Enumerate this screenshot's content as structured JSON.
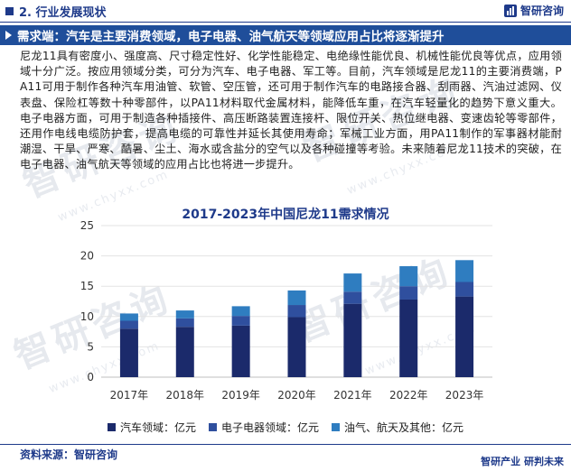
{
  "header": {
    "section_title": "2. 行业发展现状",
    "logo_text": "智研咨询"
  },
  "banner": {
    "text": "需求端：汽车是主要消费领域，电子电器、油气航天等领域应用占比将逐渐提升"
  },
  "paragraph": "尼龙11具有密度小、强度高、尺寸稳定性好、化学性能稳定、电绝缘性能优良、机械性能优良等优点，应用领域十分广泛。按应用领域分类，可分为汽车、电子电器、军工等。目前，汽车领域是尼龙11的主要消费端，PA11可用于制作各种汽车用油管、软管、空压管，还可用于制作汽车的电路接合器、刮雨器、汽油过滤网、仪表盘、保险杠等数十种零部件，以PA11材料取代金属材料，能降低车重，在汽车轻量化的趋势下意义重大。电子电器方面，可用于制造各种插接件、高压断路装置连接杆、限位开关、热位继电器、变速齿轮等零部件，还用作电线电缆防护套，提高电缆的可靠性并延长其使用寿命；军械工业方面，用PA11制作的军事器材能耐潮湿、干旱、严寒、酷暑、尘土、海水或含盐分的空气以及各种碰撞等考验。未来随着尼龙11技术的突破，在电子电器、油气航天等领域的应用占比也将进一步提升。",
  "watermark": {
    "text": "智研咨询",
    "sub": "www.chyxx.com"
  },
  "chart_data": {
    "type": "bar",
    "stacked": true,
    "title": "2017-2023年中国尼龙11需求情况",
    "categories": [
      "2017年",
      "2018年",
      "2019年",
      "2020年",
      "2021年",
      "2022年",
      "2023年"
    ],
    "series": [
      {
        "name": "汽车领域：亿元",
        "color": "#1b2a6b",
        "values": [
          8.0,
          8.3,
          8.5,
          9.9,
          12.1,
          12.8,
          13.3
        ]
      },
      {
        "name": "电子电器领域：亿元",
        "color": "#2f4f9e",
        "values": [
          1.3,
          1.4,
          1.6,
          2.0,
          2.0,
          2.2,
          2.4
        ]
      },
      {
        "name": "油气、航天及其他：亿元",
        "color": "#2f7dc0",
        "values": [
          1.2,
          1.3,
          1.6,
          2.4,
          3.0,
          3.3,
          3.6
        ]
      }
    ],
    "yticks": [
      0,
      5,
      10,
      15,
      20,
      25
    ],
    "ylim": [
      0,
      25
    ],
    "grid": true,
    "legend": "bottom",
    "xlabel": "",
    "ylabel": ""
  },
  "footer": {
    "source": "资料来源：智研咨询",
    "right_text": "智研产业  研判未来"
  }
}
